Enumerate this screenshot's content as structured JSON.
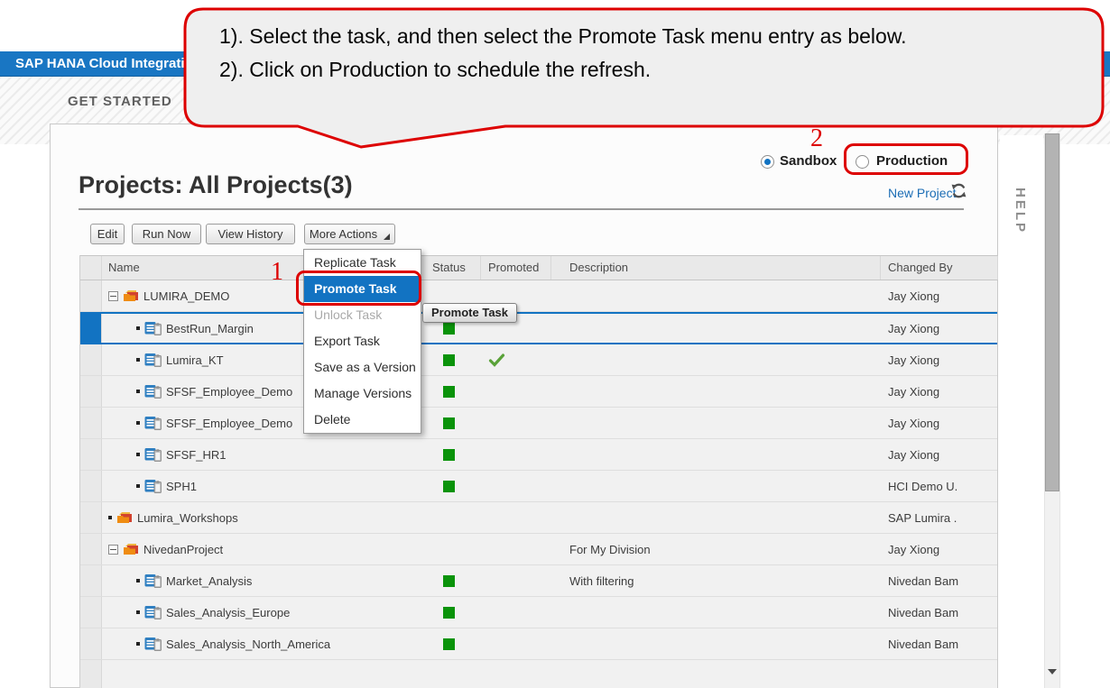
{
  "colors": {
    "accent_blue": "#1273c2",
    "status_green": "#0a930a",
    "check_green": "#5aa239",
    "annotation_red": "#dd0000",
    "link_blue": "#1b6db5",
    "header_bar_blue": "#1976c3"
  },
  "callout": {
    "line1": "1). Select the task, and then select the Promote Task menu entry as below.",
    "line2": "2). Click on Production to schedule the refresh."
  },
  "annotations": {
    "step1": "1",
    "step2": "2"
  },
  "header": {
    "app_title": "SAP HANA Cloud Integration",
    "tab": "GET STARTED"
  },
  "environment": {
    "sandbox_label": "Sandbox",
    "production_label": "Production",
    "selected": "Sandbox"
  },
  "page": {
    "title": "Projects: All Projects(3)",
    "new_project_label": "New Project",
    "help_label": "HELP"
  },
  "toolbar": {
    "buttons": [
      "Edit",
      "Run Now",
      "View History"
    ],
    "more_actions_label": "More Actions"
  },
  "menu": {
    "items": [
      {
        "label": "Replicate Task",
        "state": "normal"
      },
      {
        "label": "Promote Task",
        "state": "highlighted"
      },
      {
        "label": "Unlock Task",
        "state": "disabled"
      },
      {
        "label": "Export Task",
        "state": "normal"
      },
      {
        "label": "Save as a Version",
        "state": "normal"
      },
      {
        "label": "Manage Versions",
        "state": "normal"
      },
      {
        "label": "Delete",
        "state": "normal"
      }
    ]
  },
  "tooltip": {
    "text": "Promote Task"
  },
  "table": {
    "columns": [
      "Name",
      "Status",
      "Promoted",
      "Description",
      "Changed By"
    ],
    "rows": [
      {
        "type": "project",
        "name": "LUMIRA_DEMO",
        "expanded": true,
        "selected": false,
        "status": "",
        "promoted": false,
        "description": "",
        "changed_by": "Jay Xiong"
      },
      {
        "type": "task",
        "name": "BestRun_Margin",
        "selected": true,
        "status": "green",
        "promoted": false,
        "description": "",
        "changed_by": "Jay Xiong"
      },
      {
        "type": "task",
        "name": "Lumira_KT",
        "selected": false,
        "status": "green",
        "promoted": true,
        "description": "",
        "changed_by": "Jay Xiong"
      },
      {
        "type": "task",
        "name": "SFSF_Employee_Demo",
        "selected": false,
        "status": "green",
        "promoted": false,
        "description": "",
        "changed_by": "Jay Xiong"
      },
      {
        "type": "task",
        "name": "SFSF_Employee_Demo",
        "selected": false,
        "status": "green",
        "promoted": false,
        "description": "",
        "changed_by": "Jay Xiong"
      },
      {
        "type": "task",
        "name": "SFSF_HR1",
        "selected": false,
        "status": "green",
        "promoted": false,
        "description": "",
        "changed_by": "Jay Xiong"
      },
      {
        "type": "task",
        "name": "SPH1",
        "selected": false,
        "status": "green",
        "promoted": false,
        "description": "",
        "changed_by": "HCI Demo U."
      },
      {
        "type": "project",
        "name": "Lumira_Workshops",
        "expanded": false,
        "selected": false,
        "status": "",
        "promoted": false,
        "description": "",
        "changed_by": "SAP Lumira ."
      },
      {
        "type": "project",
        "name": "NivedanProject",
        "expanded": true,
        "selected": false,
        "status": "",
        "promoted": false,
        "description": "For My Division",
        "changed_by": "Jay Xiong"
      },
      {
        "type": "task",
        "name": "Market_Analysis",
        "selected": false,
        "status": "green",
        "promoted": false,
        "description": "With filtering",
        "changed_by": "Nivedan Bam"
      },
      {
        "type": "task",
        "name": "Sales_Analysis_Europe",
        "selected": false,
        "status": "green",
        "promoted": false,
        "description": "",
        "changed_by": "Nivedan Bam"
      },
      {
        "type": "task",
        "name": "Sales_Analysis_North_America",
        "selected": false,
        "status": "green",
        "promoted": false,
        "description": "",
        "changed_by": "Nivedan Bam"
      },
      {
        "type": "empty",
        "name": "",
        "selected": false,
        "status": "",
        "promoted": false,
        "description": "",
        "changed_by": ""
      }
    ]
  }
}
